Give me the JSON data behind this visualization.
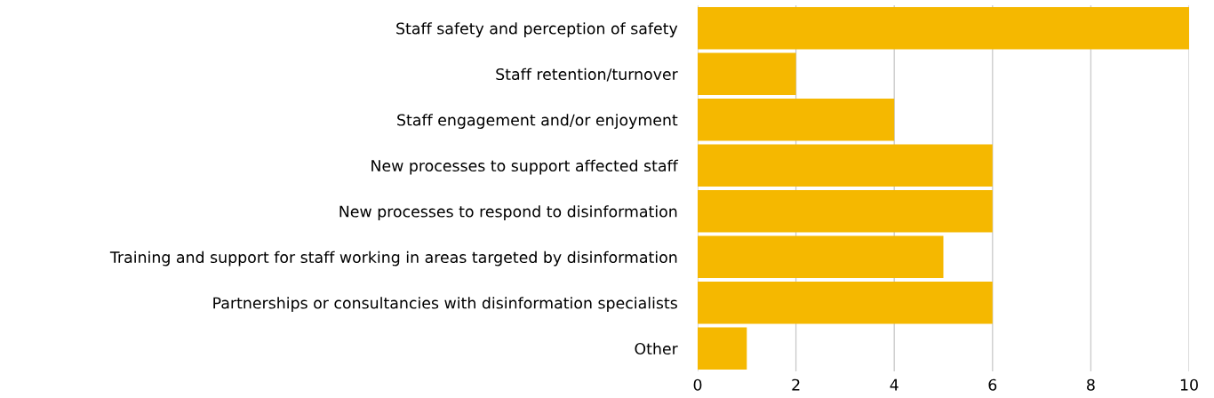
{
  "chart_data": {
    "type": "bar",
    "orientation": "horizontal",
    "categories": [
      "Staff safety and perception of safety",
      "Staff retention/turnover",
      "Staff engagement and/or enjoyment",
      "New processes to support affected staff",
      "New processes to respond to disinformation",
      "Training and support for staff working in areas targeted by disinformation",
      "Partnerships or consultancies with disinformation specialists",
      "Other"
    ],
    "values": [
      10,
      2,
      4,
      6,
      6,
      5,
      6,
      1
    ],
    "color": "#f5b800",
    "xlim": [
      0,
      10
    ],
    "xticks": [
      0,
      2,
      4,
      6,
      8,
      10
    ],
    "grid": "x"
  }
}
